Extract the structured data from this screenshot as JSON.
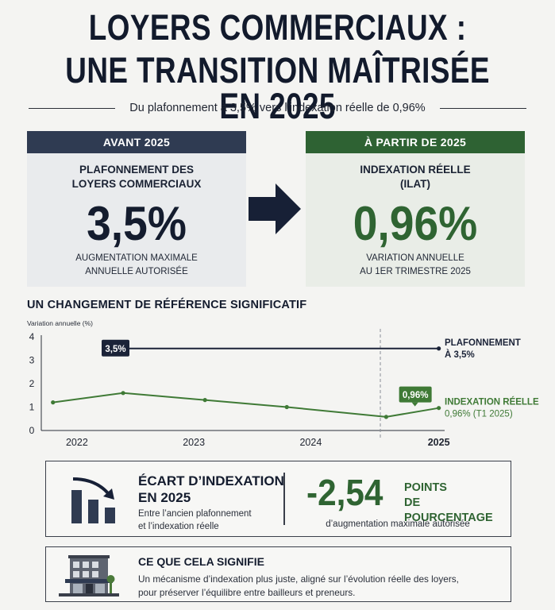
{
  "header": {
    "title_line1": "LOYERS COMMERCIAUX :",
    "title_line2": "UNE TRANSITION MAÎTRISÉE EN 2025",
    "subtitle": "Du plafonnement à 3,5% vers l’indexation réelle de 0,96%"
  },
  "before_card": {
    "header": "AVANT 2025",
    "title": "PLAFONNEMENT DES LOYERS COMMERCIAUX",
    "value": "3,5%",
    "caption": "AUGMENTATION MAXIMALE ANNUELLE AUTORISÉE"
  },
  "after_card": {
    "header": "À PARTIR DE 2025",
    "title_line1": "INDEXATION RÉELLE",
    "title_line2": "(ILAT)",
    "value": "0,96%",
    "caption_line1": "VARIATION ANNUELLE",
    "caption_line2": "AU 1ER TRIMESTRE 2025"
  },
  "chart_section": {
    "title": "UN CHANGEMENT DE RÉFÉRENCE SIGNIFICATIF"
  },
  "chart_data": {
    "type": "line",
    "ylabel": "Variation annuelle (%)",
    "ylim": [
      0,
      4
    ],
    "yticks": [
      0,
      1,
      2,
      3,
      4
    ],
    "xticks": [
      "2022",
      "2023",
      "2024",
      "2025"
    ],
    "xlim": [
      2021.6,
      2025.05
    ],
    "grid": false,
    "series": [
      {
        "name": "PLAFONNEMENT À 3,5%",
        "label_line1": "PLAFONNEMENT",
        "label_line2": "À 3,5%",
        "color": "#1b2338",
        "points": [
          {
            "x": 2022.25,
            "y": 3.5
          },
          {
            "x": 2025.0,
            "y": 3.5
          }
        ],
        "callout": "3,5%"
      },
      {
        "name": "INDEXATION RÉELLE 0,96% (T1 2025)",
        "label_line1": "INDEXATION RÉELLE",
        "label_line2": "0,96% (T1 2025)",
        "color": "#3f7a36",
        "points": [
          {
            "x": 2021.7,
            "y": 1.2
          },
          {
            "x": 2022.3,
            "y": 1.6
          },
          {
            "x": 2023.0,
            "y": 1.3
          },
          {
            "x": 2023.7,
            "y": 1.0
          },
          {
            "x": 2024.55,
            "y": 0.58
          },
          {
            "x": 2025.0,
            "y": 0.96
          }
        ],
        "callout": "0,96%"
      }
    ],
    "highlight_x": 2024.5
  },
  "gap_box": {
    "title_line1": "ÉCART D’INDEXATION",
    "title_line2": "EN 2025",
    "desc_line1": "Entre l’ancien plafonnement",
    "desc_line2": "et l’indexation réelle",
    "value": "-2,54",
    "unit_line1": "POINTS",
    "unit_line2": "DE POURCENTAGE",
    "caption": "d’augmentation maximale autorisée",
    "icon": "declining-bars-icon"
  },
  "meaning_box": {
    "title": "CE QUE CELA SIGNIFIE",
    "desc_line1": "Un mécanisme d’indexation plus juste, aligné sur l’évolution réelle des loyers,",
    "desc_line2": "pour préserver l’équilibre entre bailleurs et preneurs.",
    "icon": "commercial-building-icon"
  }
}
